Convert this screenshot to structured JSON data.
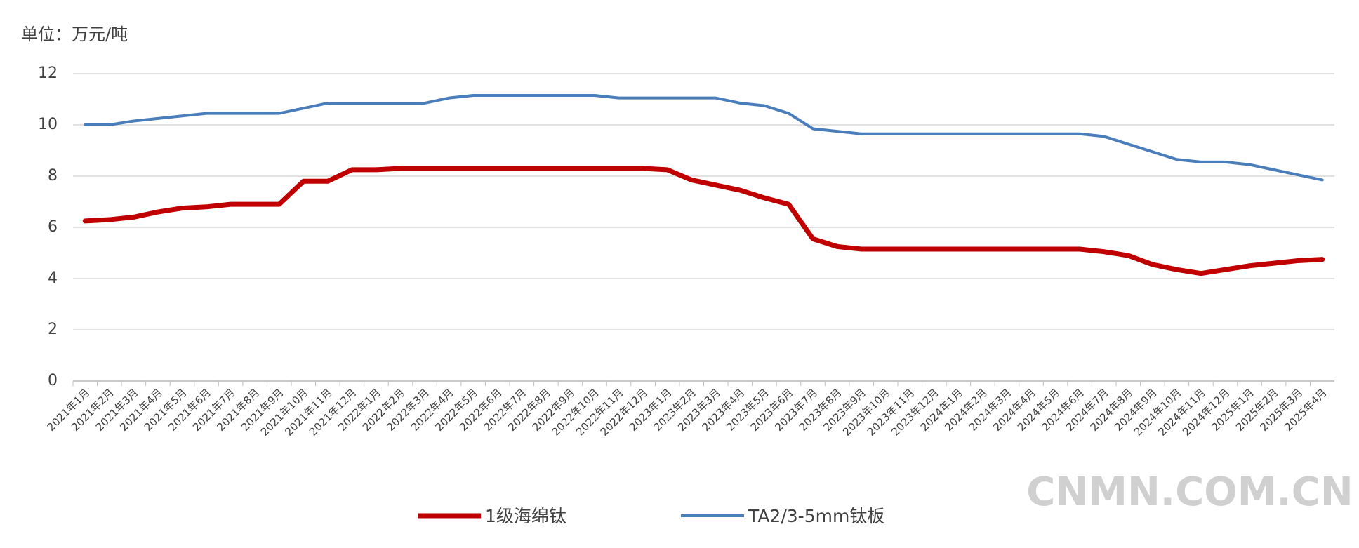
{
  "chart_data": {
    "type": "line",
    "unit_label": "单位：万元/吨",
    "watermark": "CNMN.COM.CN",
    "categories": [
      "2021年1月",
      "2021年2月",
      "2021年3月",
      "2021年4月",
      "2021年5月",
      "2021年6月",
      "2021年7月",
      "2021年8月",
      "2021年9月",
      "2021年10月",
      "2021年11月",
      "2021年12月",
      "2022年1月",
      "2022年2月",
      "2022年3月",
      "2022年4月",
      "2022年5月",
      "2022年6月",
      "2022年7月",
      "2022年8月",
      "2022年9月",
      "2022年10月",
      "2022年11月",
      "2022年12月",
      "2023年1月",
      "2023年2月",
      "2023年3月",
      "2023年4月",
      "2023年5月",
      "2023年6月",
      "2023年7月",
      "2023年8月",
      "2023年9月",
      "2023年10月",
      "2023年11月",
      "2023年12月",
      "2024年1月",
      "2024年2月",
      "2024年3月",
      "2024年4月",
      "2024年5月",
      "2024年6月",
      "2024年7月",
      "2024年8月",
      "2024年9月",
      "2024年10月",
      "2024年11月",
      "2024年12月",
      "2025年1月",
      "2025年2月",
      "2025年3月",
      "2025年4月"
    ],
    "series": [
      {
        "name": "1级海绵钛",
        "color": "#c00000",
        "width": 7,
        "values": [
          6.25,
          6.3,
          6.4,
          6.6,
          6.75,
          6.8,
          6.9,
          6.9,
          6.9,
          7.8,
          7.8,
          8.25,
          8.25,
          8.3,
          8.3,
          8.3,
          8.3,
          8.3,
          8.3,
          8.3,
          8.3,
          8.3,
          8.3,
          8.3,
          8.25,
          7.85,
          7.65,
          7.45,
          7.15,
          6.9,
          5.55,
          5.25,
          5.15,
          5.15,
          5.15,
          5.15,
          5.15,
          5.15,
          5.15,
          5.15,
          5.15,
          5.15,
          5.05,
          4.9,
          4.55,
          4.35,
          4.2,
          4.35,
          4.5,
          4.6,
          4.7,
          4.75
        ]
      },
      {
        "name": "TA2/3-5mm钛板",
        "color": "#4a7ebb",
        "width": 4,
        "values": [
          10,
          10,
          10.15,
          10.25,
          10.35,
          10.45,
          10.45,
          10.45,
          10.45,
          10.65,
          10.85,
          10.85,
          10.85,
          10.85,
          10.85,
          11.05,
          11.15,
          11.15,
          11.15,
          11.15,
          11.15,
          11.15,
          11.05,
          11.05,
          11.05,
          11.05,
          11.05,
          10.85,
          10.75,
          10.45,
          9.85,
          9.75,
          9.65,
          9.65,
          9.65,
          9.65,
          9.65,
          9.65,
          9.65,
          9.65,
          9.65,
          9.65,
          9.55,
          9.25,
          8.95,
          8.65,
          8.55,
          8.55,
          8.45,
          8.25,
          8.05,
          7.85
        ]
      }
    ],
    "ylim": [
      0,
      12
    ],
    "yticks": [
      0,
      2,
      4,
      6,
      8,
      10,
      12
    ],
    "grid": true
  }
}
